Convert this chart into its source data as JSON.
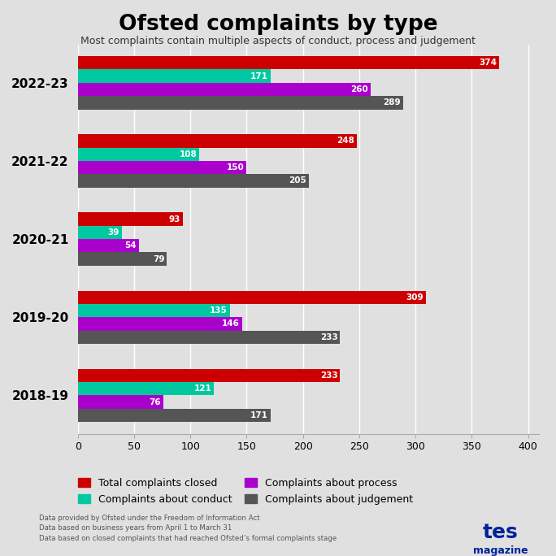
{
  "title": "Ofsted complaints by type",
  "subtitle": "Most complaints contain multiple aspects of conduct, process and judgement",
  "years": [
    "2018-19",
    "2019-20",
    "2020-21",
    "2021-22",
    "2022-23"
  ],
  "series_order": [
    "Total complaints closed",
    "Complaints about conduct",
    "Complaints about process",
    "Complaints about judgement"
  ],
  "series": {
    "Total complaints closed": {
      "color": "#cc0000",
      "values": [
        233,
        309,
        93,
        248,
        374
      ]
    },
    "Complaints about conduct": {
      "color": "#00c8a0",
      "values": [
        121,
        135,
        39,
        108,
        171
      ]
    },
    "Complaints about process": {
      "color": "#aa00cc",
      "values": [
        76,
        146,
        54,
        150,
        260
      ]
    },
    "Complaints about judgement": {
      "color": "#555555",
      "values": [
        171,
        233,
        79,
        205,
        289
      ]
    }
  },
  "xlim": [
    0,
    410
  ],
  "xticks": [
    0,
    50,
    100,
    150,
    200,
    250,
    300,
    350,
    400
  ],
  "background_color": "#e0e0e0",
  "footnotes": [
    "Data provided by Ofsted under the Freedom of Information Act",
    "Data based on business years from April 1 to March 31",
    "Data based on closed complaints that had reached Ofsted’s formal complaints stage"
  ],
  "legend_order": [
    "Total complaints closed",
    "Complaints about conduct",
    "Complaints about process",
    "Complaints about judgement"
  ]
}
